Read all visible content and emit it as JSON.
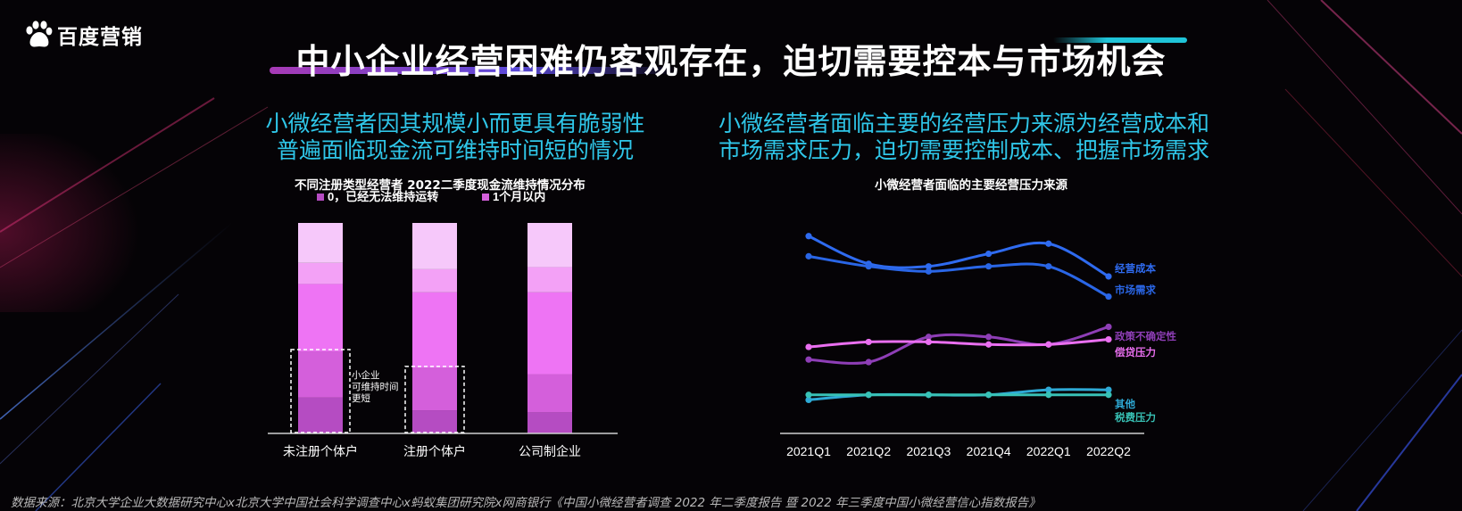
{
  "brand": {
    "logo_text": "百度营销"
  },
  "slide_title": "中小企业经营困难仍客观存在，迫切需要控本与市场机会",
  "left": {
    "subhead_line1": "小微经营者因其规模小而更具有脆弱性",
    "subhead_line2": "普遍面临现金流可维持时间短的情况"
  },
  "right": {
    "subhead_line1": "小微经营者面临主要的经营压力来源为经营成本和",
    "subhead_line2": "市场需求压力，迫切需要控制成本、把握市场需求"
  },
  "colors": {
    "seg1": "#b54cc2",
    "seg2": "#d45fdb",
    "seg3": "#ee74f4",
    "seg4": "#f3a1f6",
    "seg5": "#f6c8fa",
    "cost": "#2f6bf0",
    "demand": "#2a66e6",
    "policy": "#8e3eb6",
    "loan": "#ea6ff0",
    "other": "#2eaad6",
    "tax": "#38c2b6"
  },
  "chart_data": [
    {
      "type": "bar",
      "stacked": true,
      "title": "不同注册类型经营者  2022二季度现金流维持情况分布",
      "categories": [
        "未注册个体户",
        "注册个体户",
        "公司制企业"
      ],
      "legend": [
        "0，已经无法维持运转",
        "1个月以内"
      ],
      "legend_position": "top",
      "series": [
        {
          "name": "0，已经无法维持运转",
          "values": [
            17,
            11,
            10
          ]
        },
        {
          "name": "1个月以内",
          "values": [
            22,
            20,
            18
          ]
        },
        {
          "values": [
            32,
            36,
            39
          ]
        },
        {
          "values": [
            10,
            11,
            12
          ]
        },
        {
          "values": [
            19,
            22,
            21
          ]
        }
      ],
      "ylim": [
        0,
        100
      ],
      "highlight": {
        "categories": [
          "未注册个体户",
          "注册个体户"
        ],
        "segments": 2
      },
      "annotation": [
        "小企业",
        "可维持时间",
        "更短"
      ]
    },
    {
      "type": "line",
      "title": "小微经营者面临的主要经营压力来源",
      "x": [
        "2021Q1",
        "2021Q2",
        "2021Q3",
        "2021Q4",
        "2022Q1",
        "2022Q2"
      ],
      "ylim": [
        0,
        80
      ],
      "series": [
        {
          "name": "经营成本",
          "values": [
            73,
            62,
            61,
            66,
            70,
            57
          ]
        },
        {
          "name": "市场需求",
          "values": [
            65,
            61,
            59,
            61,
            61,
            49
          ]
        },
        {
          "name": "政策不确定性",
          "values": [
            24,
            23,
            33,
            33,
            30,
            37
          ]
        },
        {
          "name": "偿贷压力",
          "values": [
            29,
            31,
            31,
            30,
            30,
            32
          ]
        },
        {
          "name": "其他",
          "values": [
            8,
            10,
            10,
            10,
            12,
            12
          ]
        },
        {
          "name": "税费压力",
          "values": [
            10,
            10,
            10,
            10,
            10,
            10
          ]
        }
      ]
    }
  ],
  "footer": {
    "source": "数据来源：北京大学企业大数据研究中心x北京大学中国社会科学调查中心x蚂蚁集团研究院x网商银行《中国小微经营者调查 2022 年二季度报告 暨 2022 年三季度中国小微经营信心指数报告》"
  }
}
